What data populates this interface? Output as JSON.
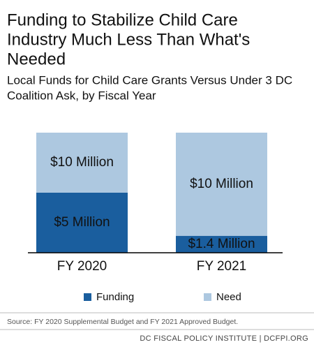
{
  "chart_data": {
    "type": "bar",
    "overlap": true,
    "title_lines": [
      "Funding to Stabilize Child Care",
      "Industry Much Less Than What's",
      "Needed"
    ],
    "subtitle_lines": [
      "Local Funds for Child Care Grants Versus Under 3 DC",
      "Coalition Ask, by Fiscal Year"
    ],
    "categories": [
      "FY 2020",
      "FY 2021"
    ],
    "series": [
      {
        "name": "Need",
        "color": "#adc8e0",
        "values": [
          10,
          10
        ],
        "value_labels": [
          "$10 Million",
          "$10 Million"
        ]
      },
      {
        "name": "Funding",
        "color": "#1a5e9e",
        "values": [
          5,
          1.4
        ],
        "value_labels": [
          "$5 Million",
          "$1.4 Million"
        ]
      }
    ],
    "legend_order": [
      1,
      0
    ],
    "source": "Source: FY 2020 Supplemental Budget and FY 2021 Approved Budget.",
    "footer": "DC FISCAL POLICY INSTITUTE  |  DCFPI.ORG"
  }
}
